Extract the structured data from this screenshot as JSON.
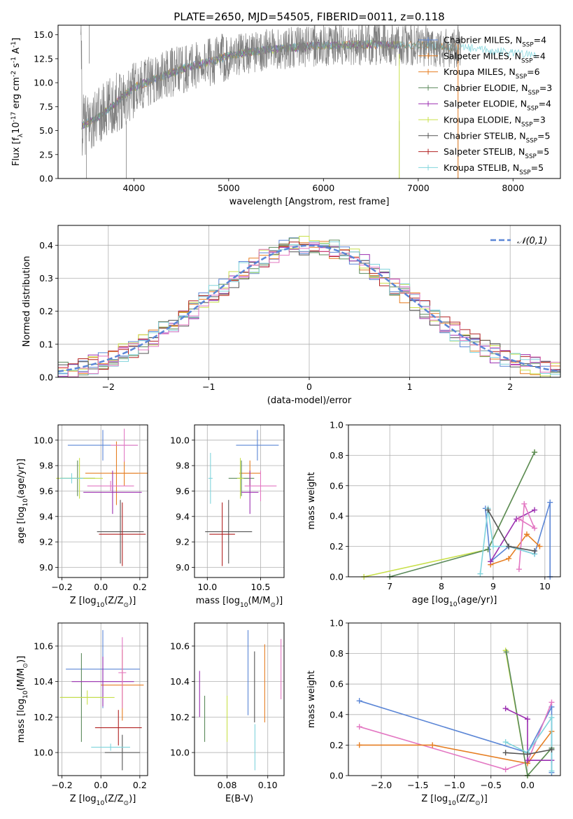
{
  "colors": {
    "chabrier_miles": "#5b86d6",
    "salpeter_miles": "#e67e22",
    "kroupa_miles": "#e67e22",
    "chabrier_elodie": "#5b8a5b",
    "salpeter_elodie": "#9b2fb0",
    "kroupa_elodie": "#c8e04a",
    "chabrier_stelib": "#555555",
    "salpeter_stelib": "#b22222",
    "kroupa_stelib": "#80d4dc",
    "gray_spec": "#808080",
    "pink": "#e377c2",
    "gaussian": "#5b86d6",
    "grid": "#b0b0b0"
  },
  "chart_data": [
    {
      "type": "line",
      "title": "PLATE=2650, MJD=54505, FIBERID=0011, z=0.118",
      "xlabel": "wavelength [Angstrom, rest frame]",
      "ylabel": "Flux [f$_\\lambda$10$^{-17}$ erg cm$^{-2}$ s$^{-1}$ A$^{-1}$]",
      "xlim": [
        3200,
        8500
      ],
      "ylim": [
        0,
        16
      ],
      "xticks": [
        "4000",
        "5000",
        "6000",
        "7000",
        "8000"
      ],
      "yticks": [
        "0.0",
        "2.5",
        "5.0",
        "7.5",
        "10.0",
        "12.5",
        "15.0"
      ],
      "legend_position": "right",
      "legend": [
        "Chabrier MILES, N$_{SSP}$=4",
        "Salpeter MILES, N$_{SSP}$=4",
        "Kroupa MILES, N$_{SSP}$=6",
        "Chabrier ELODIE, N$_{SSP}$=3",
        "Salpeter ELODIE, N$_{SSP}$=4",
        "Kroupa ELODIE, N$_{SSP}$=3",
        "Chabrier STELIB, N$_{SSP}$=5",
        "Salpeter STELIB, N$_{SSP}$=5",
        "Kroupa STELIB, N$_{SSP}$=5"
      ],
      "continuum": {
        "x": [
          3450,
          3600,
          3800,
          4000,
          4200,
          4500,
          4800,
          5000,
          5300,
          5600,
          6000,
          6500,
          7000,
          7400,
          7800,
          8200
        ],
        "y": [
          5.5,
          6.2,
          7.8,
          9.5,
          10.3,
          11.4,
          12.2,
          12.8,
          13.3,
          13.6,
          13.9,
          14.0,
          13.9,
          13.7,
          13.3,
          13.0
        ]
      },
      "grid": false
    },
    {
      "type": "line",
      "xlabel": "(data-model)/error",
      "ylabel": "Normed distribution",
      "xlim": [
        -2.5,
        2.5
      ],
      "ylim": [
        0,
        0.46
      ],
      "xticks": [
        "−2",
        "−1",
        "0",
        "1",
        "2"
      ],
      "yticks": [
        "0.0",
        "0.1",
        "0.2",
        "0.3",
        "0.4"
      ],
      "legend": [
        "$\\mathcal{N}(0,1)$"
      ],
      "legend_position": "top-right",
      "grid": true
    },
    {
      "type": "scatter",
      "xlabel": "Z [log$_{10}$(Z/Z$_\\odot$)]",
      "ylabel": "age  [log$_{10}$(age/yr)]",
      "xlim": [
        -0.22,
        0.24
      ],
      "ylim": [
        8.92,
        10.12
      ],
      "xticks": [
        "−0.2",
        "0.0",
        "0.2"
      ],
      "yticks": [
        "9.0",
        "9.2",
        "9.4",
        "9.6",
        "9.8",
        "10.0"
      ],
      "grid": true,
      "points": [
        {
          "x": 0.01,
          "xerr": 0.18,
          "y": 9.96,
          "yerr": 0.12,
          "c": "chabrier_miles"
        },
        {
          "x": 0.12,
          "xerr": 0.07,
          "y": 9.74,
          "yerr": 0.1,
          "c": "salpeter_miles"
        },
        {
          "x": 0.08,
          "xerr": 0.16,
          "y": 9.74,
          "yerr": 0.25,
          "c": "kroupa_miles"
        },
        {
          "x": -0.12,
          "xerr": 0.09,
          "y": 9.7,
          "yerr": 0.14,
          "c": "chabrier_elodie"
        },
        {
          "x": 0.06,
          "xerr": 0.15,
          "y": 9.59,
          "yerr": 0.17,
          "c": "salpeter_elodie"
        },
        {
          "x": -0.11,
          "xerr": 0.12,
          "y": 9.7,
          "yerr": 0.16,
          "c": "kroupa_elodie"
        },
        {
          "x": 0.1,
          "xerr": 0.12,
          "y": 9.28,
          "yerr": 0.25,
          "c": "chabrier_stelib"
        },
        {
          "x": 0.11,
          "xerr": 0.12,
          "y": 9.26,
          "yerr": 0.25,
          "c": "salpeter_stelib"
        },
        {
          "x": 0.12,
          "xerr": 0.07,
          "y": 9.96,
          "yerr": 0.13,
          "c": "pink"
        },
        {
          "x": -0.15,
          "xerr": 0.06,
          "y": 9.7,
          "yerr": 0.04,
          "c": "kroupa_stelib"
        },
        {
          "x": 0.05,
          "xerr": 0.12,
          "y": 9.64,
          "yerr": 0.04,
          "c": "pink"
        }
      ]
    },
    {
      "type": "scatter",
      "xlabel": "mass [log$_{10}$(M/M$_\\odot$)]",
      "xlim": [
        9.88,
        10.72
      ],
      "ylim": [
        8.92,
        10.12
      ],
      "xticks": [
        "10.0",
        "10.5"
      ],
      "yticks": [
        "9.0",
        "9.2",
        "9.4",
        "9.6",
        "9.8",
        "10.0"
      ],
      "grid": true,
      "points": [
        {
          "x": 10.47,
          "xerr": 0.2,
          "y": 9.96,
          "yerr": 0.12,
          "c": "chabrier_miles"
        },
        {
          "x": 10.4,
          "xerr": 0.1,
          "y": 9.74,
          "yerr": 0.1,
          "c": "kroupa_miles"
        },
        {
          "x": 10.32,
          "xerr": 0.12,
          "y": 9.7,
          "yerr": 0.14,
          "c": "chabrier_elodie"
        },
        {
          "x": 10.4,
          "xerr": 0.08,
          "y": 9.59,
          "yerr": 0.17,
          "c": "salpeter_elodie"
        },
        {
          "x": 10.31,
          "xerr": 0.03,
          "y": 9.7,
          "yerr": 0.16,
          "c": "kroupa_elodie"
        },
        {
          "x": 10.2,
          "xerr": 0.22,
          "y": 9.28,
          "yerr": 0.25,
          "c": "chabrier_stelib"
        },
        {
          "x": 10.14,
          "xerr": 0.12,
          "y": 9.26,
          "yerr": 0.25,
          "c": "salpeter_stelib"
        },
        {
          "x": 10.03,
          "xerr": 0.02,
          "y": 9.7,
          "yerr": 0.2,
          "c": "kroupa_stelib"
        },
        {
          "x": 10.5,
          "xerr": 0.15,
          "y": 9.64,
          "yerr": 0.12,
          "c": "pink"
        }
      ]
    },
    {
      "type": "line",
      "xlabel": "age  [log$_{10}$(age/yr)]",
      "ylabel": "mass weight",
      "xlim": [
        6.2,
        10.3
      ],
      "ylim": [
        0,
        1.0
      ],
      "xticks": [
        "7",
        "8",
        "9",
        "10"
      ],
      "yticks": [
        "0.0",
        "0.2",
        "0.4",
        "0.6",
        "0.8",
        "1.0"
      ],
      "grid": true,
      "series": [
        {
          "c": "kroupa_elodie",
          "x": [
            6.5,
            8.9,
            9.8
          ],
          "y": [
            0.0,
            0.18,
            0.82
          ]
        },
        {
          "c": "chabrier_elodie",
          "x": [
            7.0,
            8.9,
            9.8
          ],
          "y": [
            0.0,
            0.18,
            0.82
          ]
        },
        {
          "c": "chabrier_miles",
          "x": [
            8.85,
            8.95,
            9.3,
            9.8,
            10.1,
            10.1
          ],
          "y": [
            0.45,
            0.1,
            0.2,
            0.15,
            0.49,
            0.0
          ]
        },
        {
          "c": "salpeter_miles",
          "x": [
            8.95,
            9.3,
            9.65,
            9.9
          ],
          "y": [
            0.08,
            0.12,
            0.28,
            0.2
          ]
        },
        {
          "c": "salpeter_elodie",
          "x": [
            8.95,
            9.45,
            9.8
          ],
          "y": [
            0.1,
            0.38,
            0.44
          ]
        },
        {
          "c": "pink",
          "x": [
            9.5,
            9.6,
            9.8,
            9.5
          ],
          "y": [
            0.05,
            0.48,
            0.32,
            0.38
          ]
        },
        {
          "c": "kroupa_stelib",
          "x": [
            8.75,
            8.9,
            9.0,
            9.3,
            9.8
          ],
          "y": [
            0.02,
            0.45,
            0.2,
            0.2,
            0.15
          ]
        },
        {
          "c": "chabrier_stelib",
          "x": [
            8.9,
            9.3,
            9.8
          ],
          "y": [
            0.44,
            0.2,
            0.17
          ]
        }
      ]
    },
    {
      "type": "scatter",
      "xlabel": "Z [log$_{10}$(Z/Z$_\\odot$)]",
      "ylabel": "mass [log$_{10}$(M/M$_\\odot$)]",
      "xlim": [
        -0.22,
        0.24
      ],
      "ylim": [
        9.87,
        10.73
      ],
      "xticks": [
        "−0.2",
        "0.0",
        "0.2"
      ],
      "yticks": [
        "10.0",
        "10.2",
        "10.4",
        "10.6"
      ],
      "grid": true,
      "points": [
        {
          "x": 0.01,
          "xerr": 0.19,
          "y": 10.47,
          "yerr": 0.22,
          "c": "chabrier_miles"
        },
        {
          "x": 0.11,
          "xerr": 0.11,
          "y": 10.38,
          "yerr": 0.2,
          "c": "kroupa_miles"
        },
        {
          "x": -0.1,
          "xerr": 0.11,
          "y": 10.31,
          "yerr": 0.25,
          "c": "chabrier_elodie"
        },
        {
          "x": 0.01,
          "xerr": 0.16,
          "y": 10.4,
          "yerr": 0.14,
          "c": "salpeter_elodie"
        },
        {
          "x": -0.07,
          "xerr": 0.14,
          "y": 10.31,
          "yerr": 0.04,
          "c": "kroupa_elodie"
        },
        {
          "x": 0.11,
          "xerr": 0.09,
          "y": 10.0,
          "yerr": 0.1,
          "c": "chabrier_stelib"
        },
        {
          "x": 0.09,
          "xerr": 0.12,
          "y": 10.14,
          "yerr": 0.1,
          "c": "salpeter_stelib"
        },
        {
          "x": 0.05,
          "xerr": 0.1,
          "y": 10.03,
          "yerr": 0.02,
          "c": "kroupa_stelib"
        },
        {
          "x": 0.11,
          "xerr": 0.02,
          "y": 10.45,
          "yerr": 0.2,
          "c": "pink"
        }
      ]
    },
    {
      "type": "scatter",
      "xlabel": "E(B-V)",
      "xlim": [
        0.064,
        0.108
      ],
      "ylim": [
        9.87,
        10.73
      ],
      "xticks": [
        "0.08",
        "0.10"
      ],
      "yticks": [
        "10.0",
        "10.2",
        "10.4",
        "10.6"
      ],
      "grid": true,
      "points": [
        {
          "x": 0.0665,
          "y": 10.33,
          "yerr": 0.13,
          "c": "salpeter_elodie"
        },
        {
          "x": 0.069,
          "y": 10.19,
          "yerr": 0.13,
          "c": "chabrier_elodie"
        },
        {
          "x": 0.08,
          "y": 10.19,
          "yerr": 0.13,
          "c": "kroupa_elodie"
        },
        {
          "x": 0.0903,
          "y": 10.45,
          "yerr": 0.24,
          "c": "chabrier_miles"
        },
        {
          "x": 0.0935,
          "y": 10.37,
          "yerr": 0.2,
          "c": "chabrier_stelib"
        },
        {
          "x": 0.0937,
          "y": 10.03,
          "yerr": 0.13,
          "c": "kroupa_stelib"
        },
        {
          "x": 0.0985,
          "y": 10.39,
          "yerr": 0.22,
          "c": "salpeter_miles"
        },
        {
          "x": 0.1065,
          "y": 10.47,
          "yerr": 0.17,
          "c": "pink"
        }
      ]
    },
    {
      "type": "line",
      "xlabel": "Z [log$_{10}$(Z/Z$_\\odot$)]",
      "ylabel": "mass weight",
      "xlim": [
        -2.45,
        0.45
      ],
      "ylim": [
        0,
        1.0
      ],
      "xticks": [
        "−2.0",
        "−1.5",
        "−1.0",
        "−0.5",
        "0.0"
      ],
      "yticks": [
        "0.0",
        "0.2",
        "0.4",
        "0.6",
        "0.8",
        "1.0"
      ],
      "grid": true,
      "series": [
        {
          "c": "chabrier_miles",
          "x": [
            -2.3,
            0.0,
            0.33,
            0.33
          ],
          "y": [
            0.49,
            0.15,
            0.45,
            0.02
          ]
        },
        {
          "c": "pink",
          "x": [
            -2.3,
            -0.3,
            0.0,
            0.33
          ],
          "y": [
            0.32,
            0.04,
            0.09,
            0.48
          ]
        },
        {
          "c": "salpeter_miles",
          "x": [
            -2.3,
            -1.3,
            0.0,
            0.33
          ],
          "y": [
            0.2,
            0.2,
            0.08,
            0.29
          ]
        },
        {
          "c": "kroupa_elodie",
          "x": [
            -0.3,
            0.0,
            0.33
          ],
          "y": [
            0.82,
            0.0,
            0.18
          ]
        },
        {
          "c": "chabrier_elodie",
          "x": [
            -0.29,
            0.0,
            0.33
          ],
          "y": [
            0.81,
            0.0,
            0.18
          ]
        },
        {
          "c": "salpeter_elodie",
          "x": [
            -0.3,
            0.0,
            0.0,
            0.33
          ],
          "y": [
            0.44,
            0.37,
            0.1,
            0.1
          ]
        },
        {
          "c": "kroupa_stelib",
          "x": [
            -0.3,
            0.0,
            0.33,
            0.33
          ],
          "y": [
            0.22,
            0.15,
            0.38,
            0.03
          ]
        },
        {
          "c": "chabrier_stelib",
          "x": [
            -0.3,
            0.0,
            0.33
          ],
          "y": [
            0.15,
            0.14,
            0.17
          ]
        }
      ]
    }
  ]
}
